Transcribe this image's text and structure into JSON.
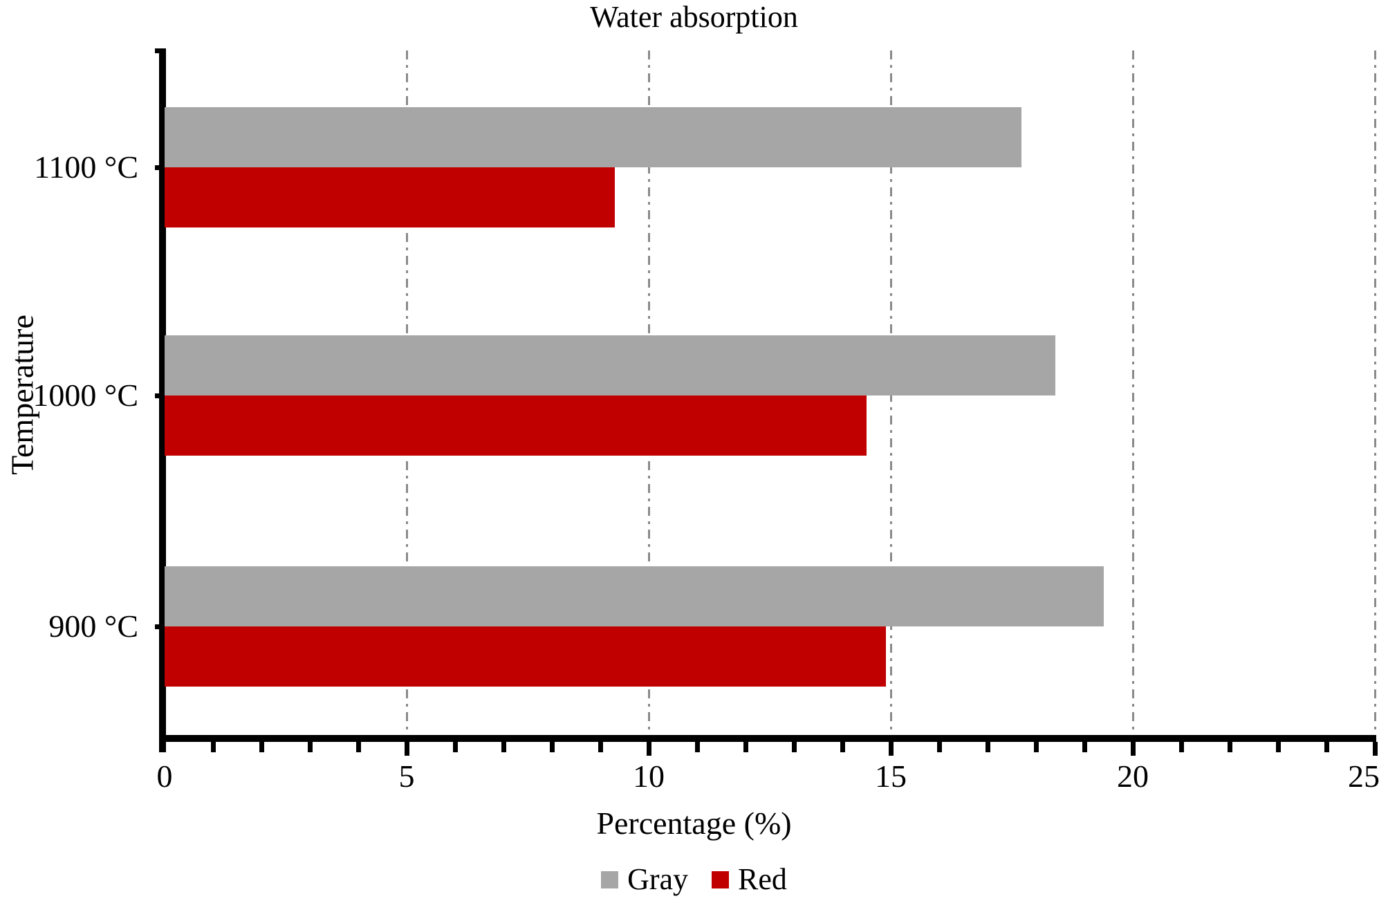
{
  "title": "Water absorption",
  "chart_data": {
    "type": "bar",
    "orientation": "horizontal",
    "title": "Water absorption",
    "categories": [
      "1100 °C",
      "1000 °C",
      "900 °C"
    ],
    "series": [
      {
        "name": "Gray",
        "color": "#a6a6a6",
        "values": [
          17.7,
          18.4,
          19.4
        ]
      },
      {
        "name": "Red",
        "color": "#c00000",
        "values": [
          9.3,
          14.5,
          14.9
        ]
      }
    ],
    "xlabel": "Percentage (%)",
    "ylabel": "Temperature",
    "xlim": [
      0,
      25
    ],
    "xticks": [
      0,
      5,
      10,
      15,
      20,
      25
    ],
    "minor_tick_step": 1,
    "gridlines": [
      5,
      10,
      15,
      20,
      25
    ],
    "gridline_style": "dash-dot",
    "grid": true,
    "legend_position": "bottom",
    "legend": [
      {
        "label": "Gray",
        "color": "#a6a6a6"
      },
      {
        "label": "Red",
        "color": "#c00000"
      }
    ]
  },
  "colors": {
    "gray_series": "#a6a6a6",
    "red_series": "#c00000",
    "axis": "#000000",
    "gridline": "#8a8a8a",
    "background": "#ffffff",
    "text": "#000000"
  }
}
